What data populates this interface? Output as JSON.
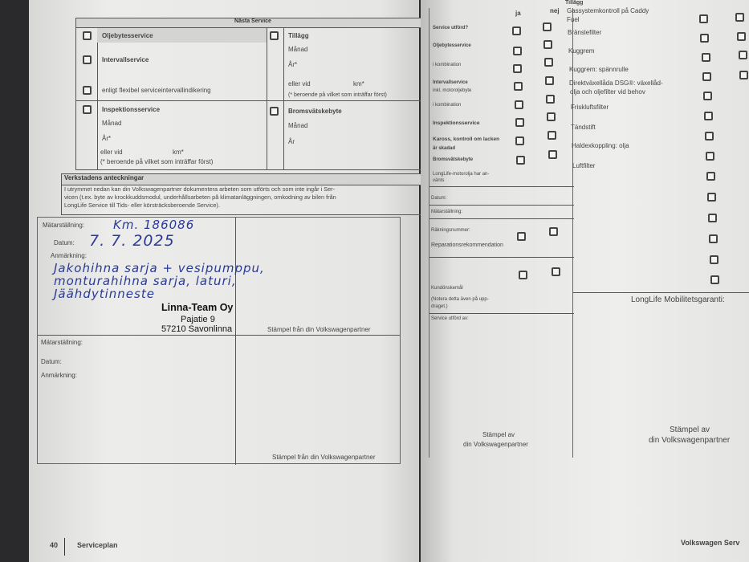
{
  "left_page": {
    "next_service": {
      "title": "Nästa Service",
      "oil_change": "Oljebytesservice",
      "interval": "Intervallservice",
      "flexible": "enligt flexibel serviceintervallindikering",
      "inspection": "Inspektionsservice",
      "month": "Månad",
      "year": "År*",
      "or_at": "eller vid",
      "km": "km*",
      "whichever": "(* beroende på vilket som inträffar först)",
      "extra": "Tillägg",
      "extra_month": "Månad",
      "extra_year": "År*",
      "extra_or_at": "eller vid",
      "extra_km": "km*",
      "extra_whichever": "(* beroende på vilket som inträffar först)",
      "brake_fluid": "Bromsvätskebyte",
      "brake_month": "Månad",
      "brake_year": "År"
    },
    "notes": {
      "title": "Verkstadens anteckningar",
      "line1": "I utrymmet nedan kan din Volkswagenpartner dokumentera arbeten som utförts och som inte ingår i Ser-",
      "line2": "vicen (t.ex. byte av krockkuddsmodul, underhållsarbeten på klimatanläggningen, omkodning av bilen från",
      "line3": "LongLife Service till Tids- eller körsträcksberoende Service)."
    },
    "entry1": {
      "mileage_label": "Mätarställning:",
      "mileage": "Km. 186086",
      "date_label": "Datum:",
      "date": "7. 7. 2025",
      "remark_label": "Anmärkning:",
      "remark_lines": [
        "Jakohihna sarja + vesipumppu,",
        "monturahihna sarja, laturi,",
        "Jäähdytinneste"
      ],
      "dealer_name": "Linna-Team Oy",
      "dealer_street": "Pajatie 9",
      "dealer_city": "57210 Savonlinna",
      "stamp": "Stämpel från din Volkswagenpartner"
    },
    "entry2": {
      "mileage_label": "Mätarställning:",
      "date_label": "Datum:",
      "remark_label": "Anmärkning:",
      "stamp": "Stämpel från din Volkswagenpartner"
    },
    "footer": {
      "page_number": "40",
      "section": "Serviceplan"
    }
  },
  "right_page": {
    "yes": "ja",
    "no": "nej",
    "extra": "Tillägg",
    "left_rows": [
      "Service utförd?",
      "Oljebytesservice",
      "i kombination",
      "Intervallservice",
      "inkl. motoroljebyte",
      "i kombination",
      "Inspektionsservice",
      "Kaross, kontroll om lacken",
      "är skadad",
      "Bromsvätskebyte",
      "LongLife-motorolja har an-",
      "vänts",
      "Datum:",
      "Mätarställning:",
      "Räkningsnummer:",
      "Reparationsrekommendation",
      "Kundönskemål",
      "(Notera detta även på upp-",
      "draget.)",
      "Service utförd av:"
    ],
    "extras": [
      "Gassystemkontroll på Caddy",
      "Fuel",
      "Bränslefilter",
      "Kuggrem",
      "Kuggrem: spännrulle",
      "Direktväxellåda DSG®: växellåd-",
      "olja och oljefilter vid behov",
      "Friskluftsfilter",
      "Tändstift",
      "Haldexkoppling: olja",
      "Luftfilter"
    ],
    "mobility": "LongLife Mobilitetsgaranti:",
    "stamp_left": [
      "Stämpel av",
      "din Volkswagenpartner"
    ],
    "stamp_right": [
      "Stämpel av",
      "din Volkswagenpartner"
    ],
    "footer": "Volkswagen Serv"
  }
}
